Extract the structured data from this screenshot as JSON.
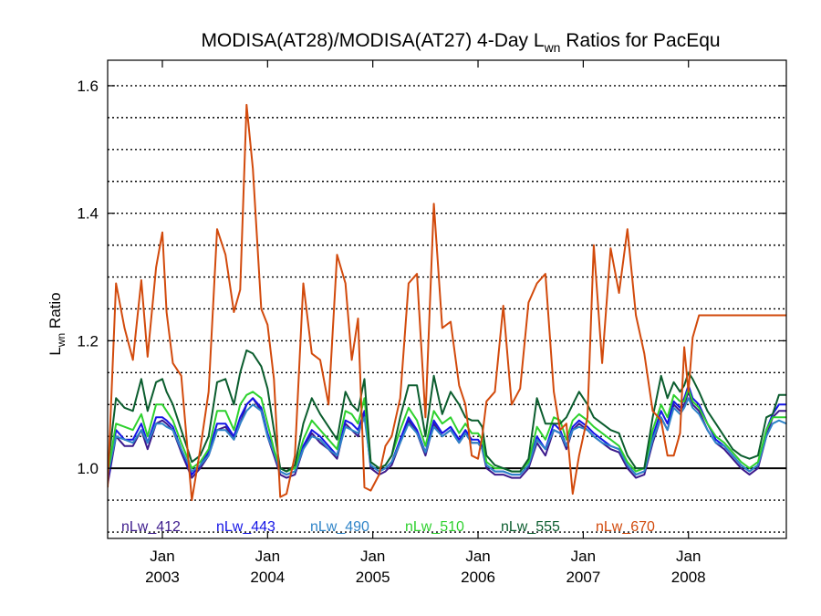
{
  "chart_data": {
    "type": "line",
    "title": {
      "pre": "MODISA(AT28)/MODISA(AT27) 4-Day L",
      "sub": "wn",
      "post": " Ratios for PacEqu"
    },
    "ylabel": {
      "main": "L",
      "sub": "wn",
      "post": " Ratio"
    },
    "ylim": [
      0.89,
      1.64
    ],
    "xlim": [
      2002.48,
      2008.93
    ],
    "yticks": [
      1.0,
      1.2,
      1.4,
      1.6
    ],
    "ytick_labels": [
      "1.0",
      "1.2",
      "1.4",
      "1.6"
    ],
    "xticks": [
      2003.0,
      2004.0,
      2005.0,
      2006.0,
      2007.0,
      2008.0
    ],
    "xtick_month_labels": [
      "Jan",
      "Jan",
      "Jan",
      "Jan",
      "Jan",
      "Jan"
    ],
    "xtick_year_labels": [
      "2003",
      "2004",
      "2005",
      "2006",
      "2007",
      "2008"
    ],
    "grid": true,
    "grid_style": "dotted horizontal",
    "reference_line": 1.0,
    "legend_position": "bottom-inside",
    "x": [
      2002.48,
      2002.56,
      2002.64,
      2002.72,
      2002.8,
      2002.86,
      2002.94,
      2003.0,
      2003.04,
      2003.1,
      2003.18,
      2003.28,
      2003.36,
      2003.44,
      2003.52,
      2003.6,
      2003.68,
      2003.74,
      2003.8,
      2003.86,
      2003.94,
      2004.0,
      2004.06,
      2004.12,
      2004.18,
      2004.26,
      2004.34,
      2004.42,
      2004.5,
      2004.58,
      2004.66,
      2004.74,
      2004.8,
      2004.86,
      2004.92,
      2004.98,
      2005.06,
      2005.12,
      2005.18,
      2005.26,
      2005.34,
      2005.42,
      2005.5,
      2005.58,
      2005.66,
      2005.74,
      2005.82,
      2005.88,
      2005.94,
      2006.0,
      2006.04,
      2006.08,
      2006.16,
      2006.24,
      2006.32,
      2006.4,
      2006.48,
      2006.56,
      2006.64,
      2006.72,
      2006.78,
      2006.84,
      2006.9,
      2006.96,
      2007.04,
      2007.1,
      2007.18,
      2007.26,
      2007.34,
      2007.42,
      2007.5,
      2007.58,
      2007.66,
      2007.74,
      2007.8,
      2007.86,
      2007.92,
      2007.96,
      2008.0,
      2008.04,
      2008.1,
      2008.18,
      2008.26,
      2008.34,
      2008.42,
      2008.5,
      2008.58,
      2008.66,
      2008.74,
      2008.8,
      2008.86,
      2008.93
    ],
    "series": [
      {
        "name": "nLw_412",
        "color": "#3c1a8c",
        "values": [
          0.975,
          1.05,
          1.035,
          1.035,
          1.06,
          1.03,
          1.07,
          1.075,
          1.07,
          1.06,
          1.025,
          0.985,
          1.0,
          1.02,
          1.06,
          1.065,
          1.045,
          1.07,
          1.1,
          1.11,
          1.09,
          1.05,
          1.02,
          0.99,
          0.985,
          0.99,
          1.03,
          1.055,
          1.04,
          1.03,
          1.015,
          1.07,
          1.06,
          1.05,
          1.09,
          1.0,
          0.99,
          0.995,
          1.005,
          1.04,
          1.075,
          1.055,
          1.02,
          1.07,
          1.05,
          1.06,
          1.04,
          1.055,
          1.04,
          1.04,
          1.03,
          1.0,
          0.99,
          0.99,
          0.985,
          0.985,
          1.0,
          1.04,
          1.02,
          1.06,
          1.055,
          1.03,
          1.06,
          1.07,
          1.06,
          1.05,
          1.04,
          1.03,
          1.025,
          1.0,
          0.985,
          0.99,
          1.04,
          1.08,
          1.06,
          1.1,
          1.09,
          1.1,
          1.12,
          1.1,
          1.09,
          1.06,
          1.04,
          1.03,
          1.015,
          1.0,
          0.99,
          1.0,
          1.05,
          1.08,
          1.09,
          1.09
        ]
      },
      {
        "name": "nLw_443",
        "color": "#1414e6",
        "values": [
          0.98,
          1.06,
          1.045,
          1.045,
          1.07,
          1.04,
          1.08,
          1.08,
          1.075,
          1.065,
          1.03,
          0.99,
          1.005,
          1.025,
          1.07,
          1.07,
          1.05,
          1.08,
          1.1,
          1.11,
          1.095,
          1.055,
          1.025,
          0.995,
          0.99,
          0.995,
          1.035,
          1.06,
          1.05,
          1.035,
          1.02,
          1.075,
          1.07,
          1.06,
          1.09,
          1.005,
          0.995,
          1.0,
          1.01,
          1.045,
          1.08,
          1.06,
          1.025,
          1.075,
          1.055,
          1.065,
          1.045,
          1.06,
          1.045,
          1.045,
          1.035,
          1.005,
          0.995,
          0.995,
          0.99,
          0.99,
          1.005,
          1.05,
          1.03,
          1.07,
          1.06,
          1.035,
          1.065,
          1.075,
          1.065,
          1.055,
          1.045,
          1.035,
          1.03,
          1.005,
          0.99,
          0.995,
          1.05,
          1.09,
          1.07,
          1.105,
          1.095,
          1.11,
          1.13,
          1.11,
          1.1,
          1.07,
          1.045,
          1.035,
          1.02,
          1.005,
          0.995,
          1.005,
          1.06,
          1.085,
          1.1,
          1.1
        ]
      },
      {
        "name": "nLw_490",
        "color": "#2f84c8",
        "values": [
          0.99,
          1.05,
          1.045,
          1.04,
          1.06,
          1.04,
          1.07,
          1.07,
          1.065,
          1.06,
          1.03,
          0.995,
          1.005,
          1.02,
          1.06,
          1.06,
          1.045,
          1.07,
          1.09,
          1.1,
          1.09,
          1.05,
          1.025,
          0.995,
          0.99,
          0.995,
          1.03,
          1.05,
          1.045,
          1.03,
          1.02,
          1.065,
          1.06,
          1.055,
          1.08,
          1.005,
          0.995,
          1.0,
          1.01,
          1.04,
          1.07,
          1.055,
          1.025,
          1.065,
          1.05,
          1.06,
          1.04,
          1.055,
          1.04,
          1.04,
          1.03,
          1.005,
          0.995,
          0.995,
          0.99,
          0.99,
          1.005,
          1.045,
          1.03,
          1.06,
          1.055,
          1.035,
          1.06,
          1.065,
          1.06,
          1.05,
          1.04,
          1.035,
          1.03,
          1.005,
          0.99,
          0.995,
          1.045,
          1.08,
          1.06,
          1.095,
          1.085,
          1.095,
          1.11,
          1.095,
          1.085,
          1.06,
          1.04,
          1.035,
          1.02,
          1.005,
          0.995,
          1.005,
          1.05,
          1.07,
          1.075,
          1.07
        ]
      },
      {
        "name": "nLw_510",
        "color": "#2ed12e",
        "values": [
          0.99,
          1.07,
          1.065,
          1.06,
          1.085,
          1.05,
          1.1,
          1.1,
          1.09,
          1.075,
          1.04,
          1.0,
          1.01,
          1.03,
          1.09,
          1.09,
          1.06,
          1.1,
          1.115,
          1.12,
          1.11,
          1.07,
          1.03,
          1.0,
          0.995,
          1.0,
          1.045,
          1.075,
          1.06,
          1.045,
          1.03,
          1.09,
          1.085,
          1.07,
          1.11,
          1.01,
          1.0,
          1.005,
          1.02,
          1.06,
          1.095,
          1.075,
          1.035,
          1.09,
          1.07,
          1.08,
          1.055,
          1.07,
          1.055,
          1.055,
          1.045,
          1.01,
          1.0,
          1.0,
          0.995,
          0.995,
          1.01,
          1.065,
          1.045,
          1.08,
          1.075,
          1.045,
          1.075,
          1.085,
          1.075,
          1.065,
          1.055,
          1.045,
          1.035,
          1.01,
          0.995,
          1.0,
          1.06,
          1.1,
          1.08,
          1.115,
          1.105,
          1.105,
          1.125,
          1.105,
          1.095,
          1.07,
          1.05,
          1.04,
          1.025,
          1.01,
          1.0,
          1.01,
          1.06,
          1.08,
          1.08,
          1.08
        ]
      },
      {
        "name": "nLw_555",
        "color": "#0b5d2e",
        "values": [
          1.0,
          1.11,
          1.095,
          1.09,
          1.14,
          1.09,
          1.135,
          1.14,
          1.12,
          1.1,
          1.06,
          1.01,
          1.02,
          1.05,
          1.135,
          1.14,
          1.1,
          1.15,
          1.185,
          1.18,
          1.16,
          1.125,
          1.06,
          1.0,
          0.995,
          1.005,
          1.07,
          1.11,
          1.085,
          1.065,
          1.045,
          1.12,
          1.1,
          1.09,
          1.14,
          1.01,
          1.0,
          1.005,
          1.02,
          1.08,
          1.13,
          1.13,
          1.05,
          1.145,
          1.085,
          1.12,
          1.1,
          1.08,
          1.075,
          1.075,
          1.065,
          1.02,
          1.005,
          1.0,
          0.995,
          0.995,
          1.015,
          1.11,
          1.07,
          1.07,
          1.07,
          1.08,
          1.1,
          1.12,
          1.1,
          1.08,
          1.07,
          1.06,
          1.055,
          1.02,
          1.0,
          1.0,
          1.08,
          1.145,
          1.11,
          1.135,
          1.12,
          1.13,
          1.15,
          1.14,
          1.12,
          1.09,
          1.07,
          1.05,
          1.03,
          1.02,
          1.015,
          1.02,
          1.08,
          1.085,
          1.115,
          1.115
        ]
      },
      {
        "name": "nLw_670",
        "color": "#d24a0c",
        "values": [
          0.97,
          1.29,
          1.22,
          1.17,
          1.295,
          1.175,
          1.315,
          1.37,
          1.245,
          1.165,
          1.145,
          0.95,
          1.03,
          1.12,
          1.375,
          1.335,
          1.245,
          1.28,
          1.57,
          1.47,
          1.25,
          1.225,
          1.14,
          0.955,
          0.96,
          1.02,
          1.29,
          1.18,
          1.17,
          1.1,
          1.335,
          1.29,
          1.17,
          1.235,
          0.97,
          0.965,
          0.99,
          1.035,
          1.05,
          1.11,
          1.29,
          1.305,
          1.08,
          1.415,
          1.22,
          1.23,
          1.13,
          1.1,
          1.02,
          1.015,
          1.05,
          1.105,
          1.12,
          1.255,
          1.1,
          1.125,
          1.26,
          1.29,
          1.305,
          1.12,
          1.06,
          1.07,
          0.96,
          1.02,
          1.08,
          1.35,
          1.165,
          1.345,
          1.275,
          1.375,
          1.24,
          1.18,
          1.09,
          1.075,
          1.02,
          1.02,
          1.055,
          1.19,
          1.12,
          1.205,
          1.24,
          1.24,
          1.24,
          1.24,
          1.24,
          1.24,
          1.24,
          1.24,
          1.24,
          1.24,
          1.24,
          1.24
        ]
      }
    ]
  }
}
